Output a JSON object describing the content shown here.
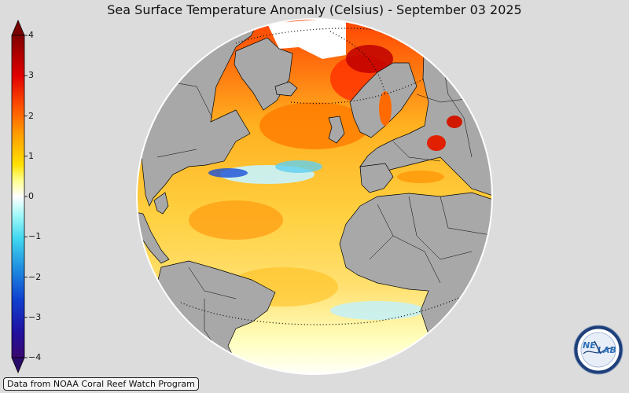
{
  "title": "Sea Surface Temperature Anomaly (Celsius) - September 03 2025",
  "colorbar": {
    "ticks": [
      "4",
      "3",
      "2",
      "1",
      "0",
      "−1",
      "−2",
      "−3",
      "−4"
    ],
    "min": -4,
    "max": 4
  },
  "credit": "Data from NOAA Coral Reef Watch Program",
  "logo": {
    "text_left": "NE",
    "text_right": "LAB"
  },
  "colors": {
    "background": "#dcdcdc",
    "land": "#a8a8a8",
    "border_lines": "#000000",
    "anomaly_max": "#7a0000",
    "anomaly_zero": "#ffffff",
    "anomaly_min": "#2a0a6a"
  }
}
